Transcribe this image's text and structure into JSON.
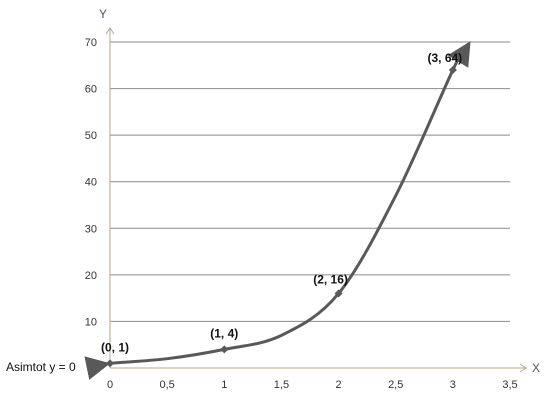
{
  "chart_data": {
    "type": "line",
    "title": "",
    "xlabel": "X",
    "ylabel": "Y",
    "xlim": [
      0,
      3.5
    ],
    "ylim": [
      0,
      70
    ],
    "x_ticks": [
      0,
      0.5,
      1,
      1.5,
      2,
      2.5,
      3,
      3.5
    ],
    "x_tick_labels": [
      "0",
      "0,5",
      "1",
      "1,5",
      "2",
      "2,5",
      "3",
      "3,5"
    ],
    "y_ticks": [
      0,
      10,
      20,
      30,
      40,
      50,
      60,
      70
    ],
    "y_tick_labels": [
      "0",
      "10",
      "20",
      "30",
      "40",
      "50",
      "60",
      "70"
    ],
    "grid": true,
    "series": [
      {
        "values": [
          {
            "x": -0.1,
            "y": 0.5
          },
          {
            "x": 0,
            "y": 1
          },
          {
            "x": 0.5,
            "y": 2
          },
          {
            "x": 1,
            "y": 4
          },
          {
            "x": 1.5,
            "y": 7
          },
          {
            "x": 2,
            "y": 16
          },
          {
            "x": 2.5,
            "y": 37
          },
          {
            "x": 3,
            "y": 64
          },
          {
            "x": 3.1,
            "y": 68
          }
        ],
        "markers": [
          {
            "x": 0,
            "y": 1,
            "label": "(0, 1)"
          },
          {
            "x": 1,
            "y": 4,
            "label": "(1, 4)"
          },
          {
            "x": 2,
            "y": 16,
            "label": "(2, 16)"
          },
          {
            "x": 3,
            "y": 64,
            "label": "(3, 64)"
          }
        ],
        "color": "#595959"
      }
    ],
    "annotations": [
      {
        "text": "Asimtot y = 0"
      }
    ]
  }
}
